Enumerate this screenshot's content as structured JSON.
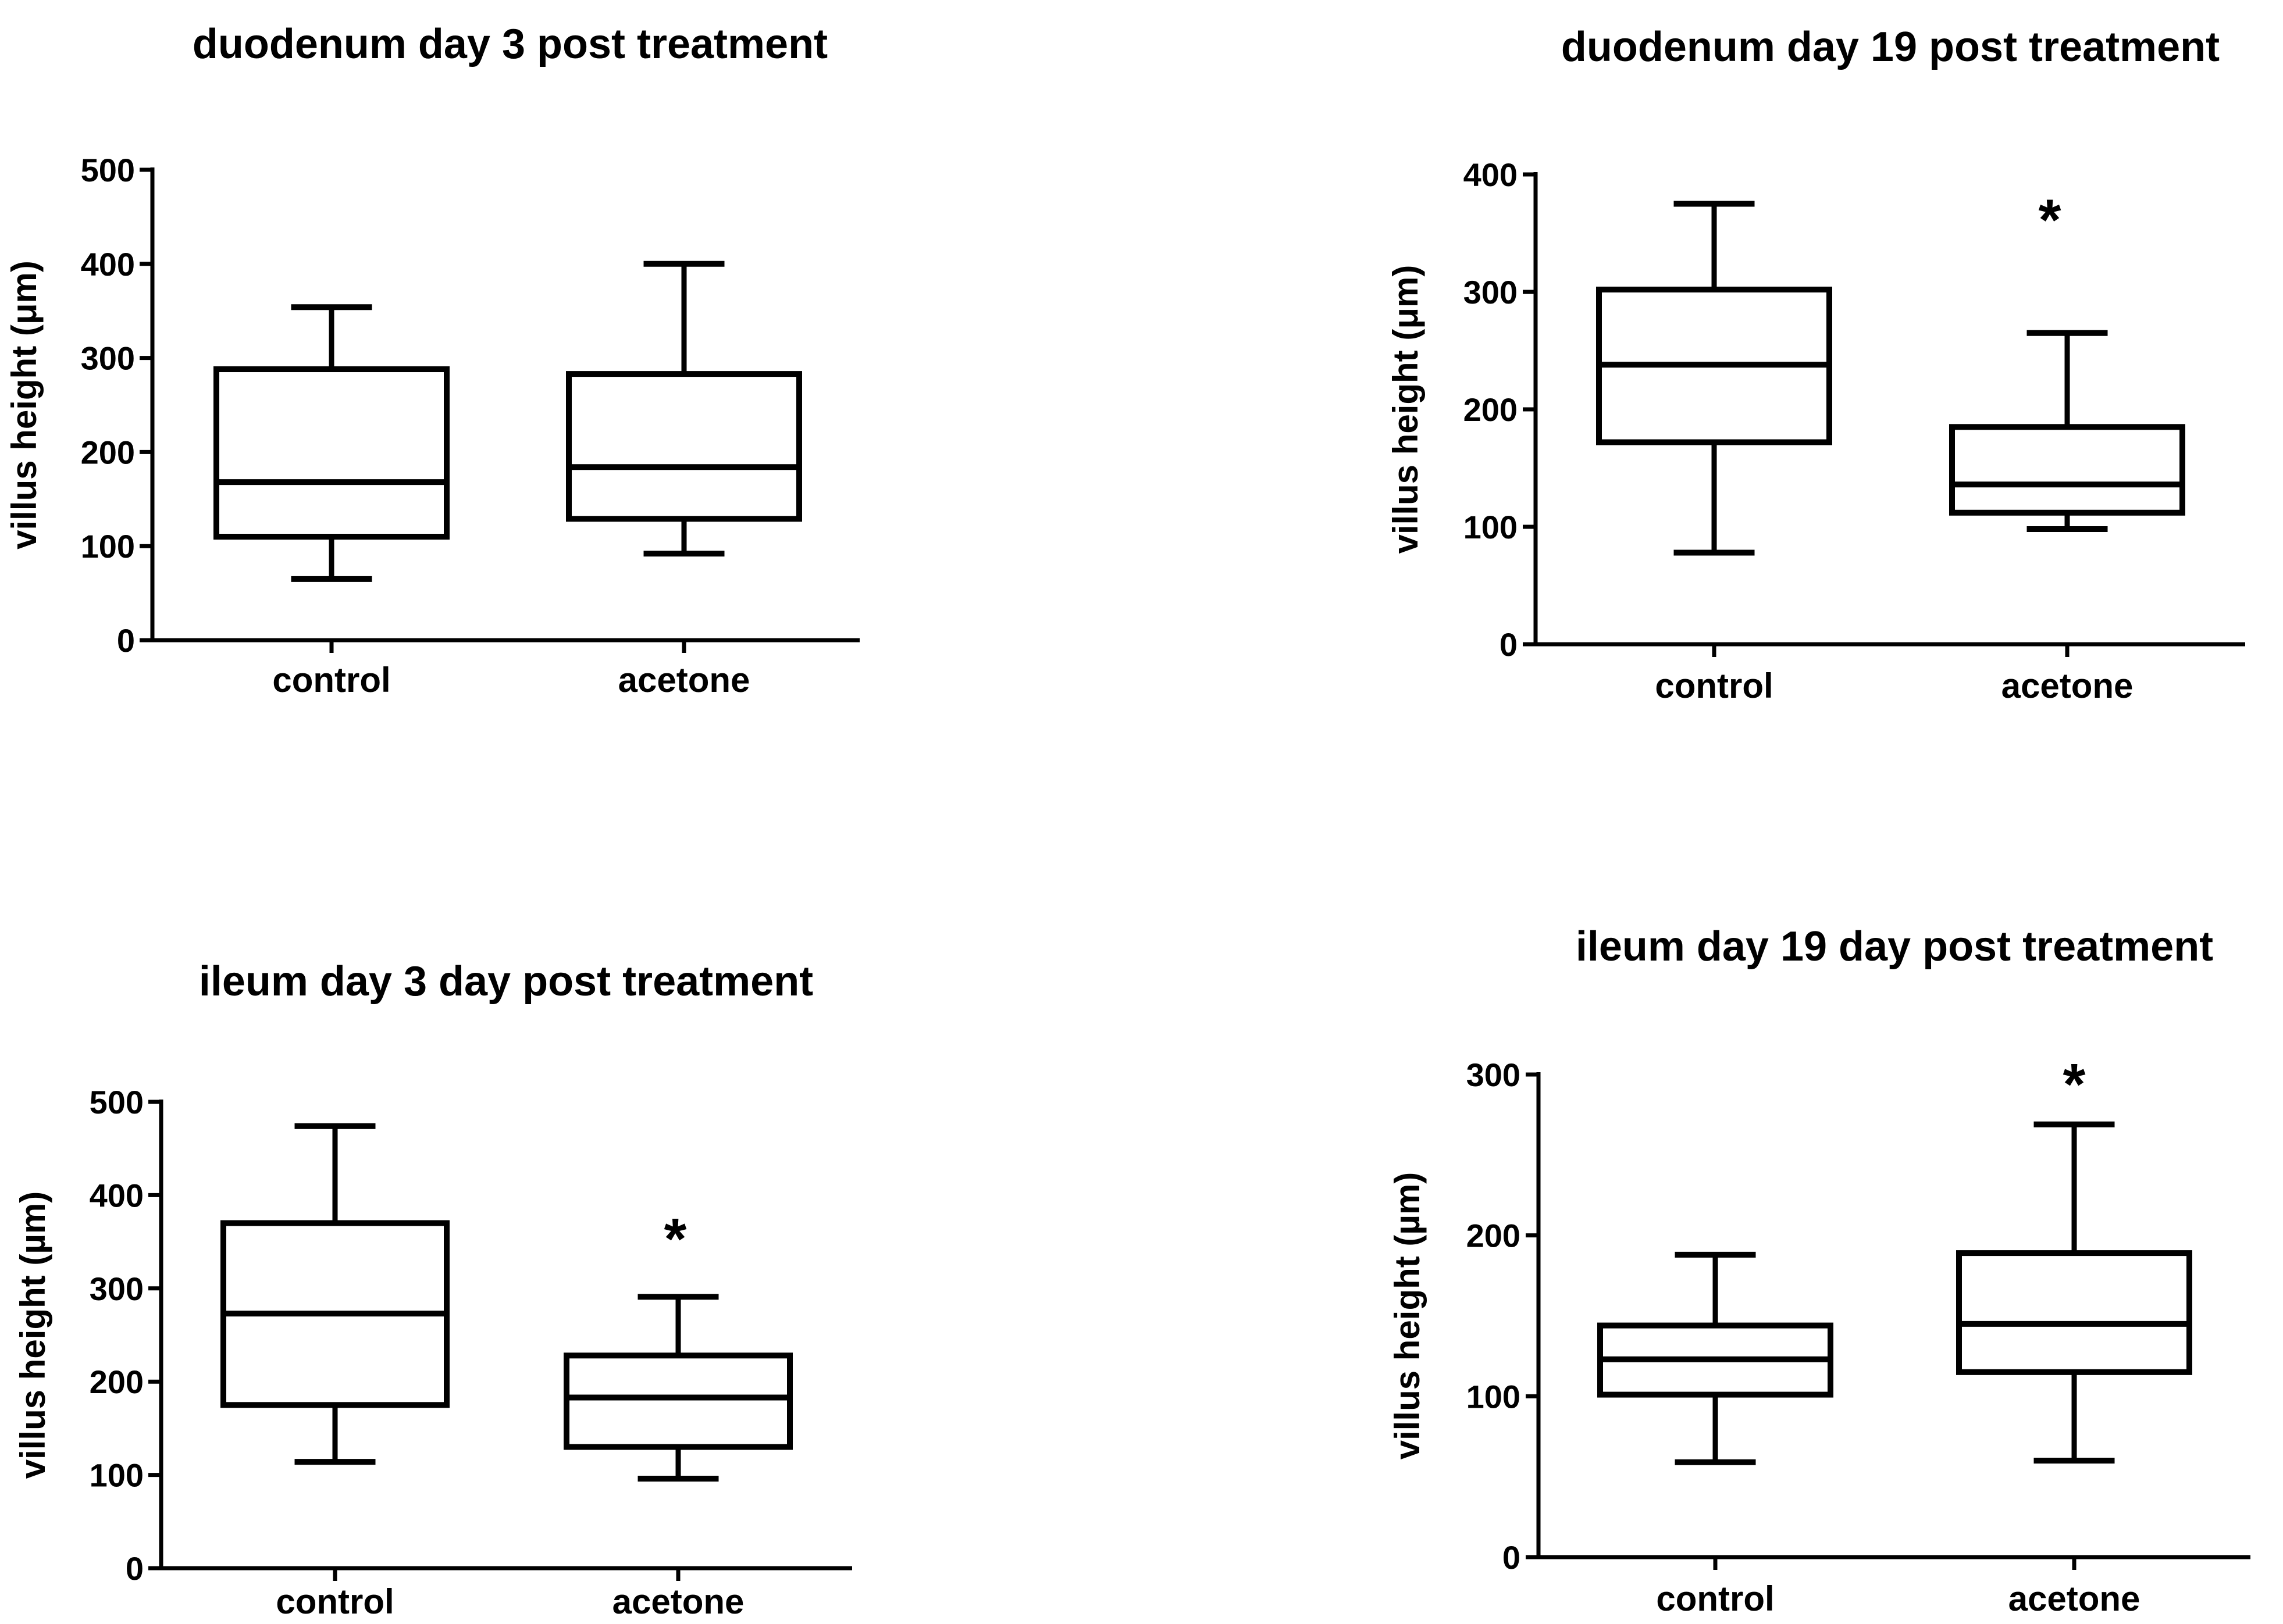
{
  "colors": {
    "ink": "#000000",
    "background": "#ffffff"
  },
  "chart_data": [
    {
      "type": "box",
      "title": "duodenum day 3 post treatment",
      "ylabel": "villus height (μm)",
      "ylim": [
        0,
        500
      ],
      "yticks": [
        0,
        100,
        200,
        300,
        400,
        500
      ],
      "categories": [
        "control",
        "acetone"
      ],
      "boxes": [
        {
          "min": 65,
          "q1": 110,
          "median": 168,
          "q3": 288,
          "max": 354,
          "significance": ""
        },
        {
          "min": 92,
          "q1": 129,
          "median": 184,
          "q3": 283,
          "max": 400,
          "significance": ""
        }
      ]
    },
    {
      "type": "box",
      "title": "duodenum day 19 post treatment",
      "ylabel": "villus height (μm)",
      "ylim": [
        0,
        400
      ],
      "yticks": [
        0,
        100,
        200,
        300,
        400
      ],
      "categories": [
        "control",
        "acetone"
      ],
      "boxes": [
        {
          "min": 78,
          "q1": 172,
          "median": 238,
          "q3": 302,
          "max": 375,
          "significance": ""
        },
        {
          "min": 98,
          "q1": 112,
          "median": 136,
          "q3": 185,
          "max": 265,
          "significance": "*"
        }
      ]
    },
    {
      "type": "box",
      "title": "ileum day 3 day post treatment",
      "ylabel": "villus height (µm)",
      "ylim": [
        0,
        500
      ],
      "yticks": [
        0,
        100,
        200,
        300,
        400,
        500
      ],
      "categories": [
        "control",
        "acetone"
      ],
      "boxes": [
        {
          "min": 114,
          "q1": 175,
          "median": 273,
          "q3": 370,
          "max": 474,
          "significance": ""
        },
        {
          "min": 96,
          "q1": 130,
          "median": 183,
          "q3": 228,
          "max": 291,
          "significance": "*"
        }
      ]
    },
    {
      "type": "box",
      "title": "ileum day 19 day post treatment",
      "ylabel": "villus height (µm)",
      "ylim": [
        0,
        300
      ],
      "yticks": [
        0,
        100,
        200,
        300
      ],
      "categories": [
        "control",
        "acetone"
      ],
      "boxes": [
        {
          "min": 59,
          "q1": 101,
          "median": 123,
          "q3": 144,
          "max": 188,
          "significance": ""
        },
        {
          "min": 60,
          "q1": 115,
          "median": 145,
          "q3": 189,
          "max": 269,
          "significance": "*"
        }
      ]
    }
  ]
}
